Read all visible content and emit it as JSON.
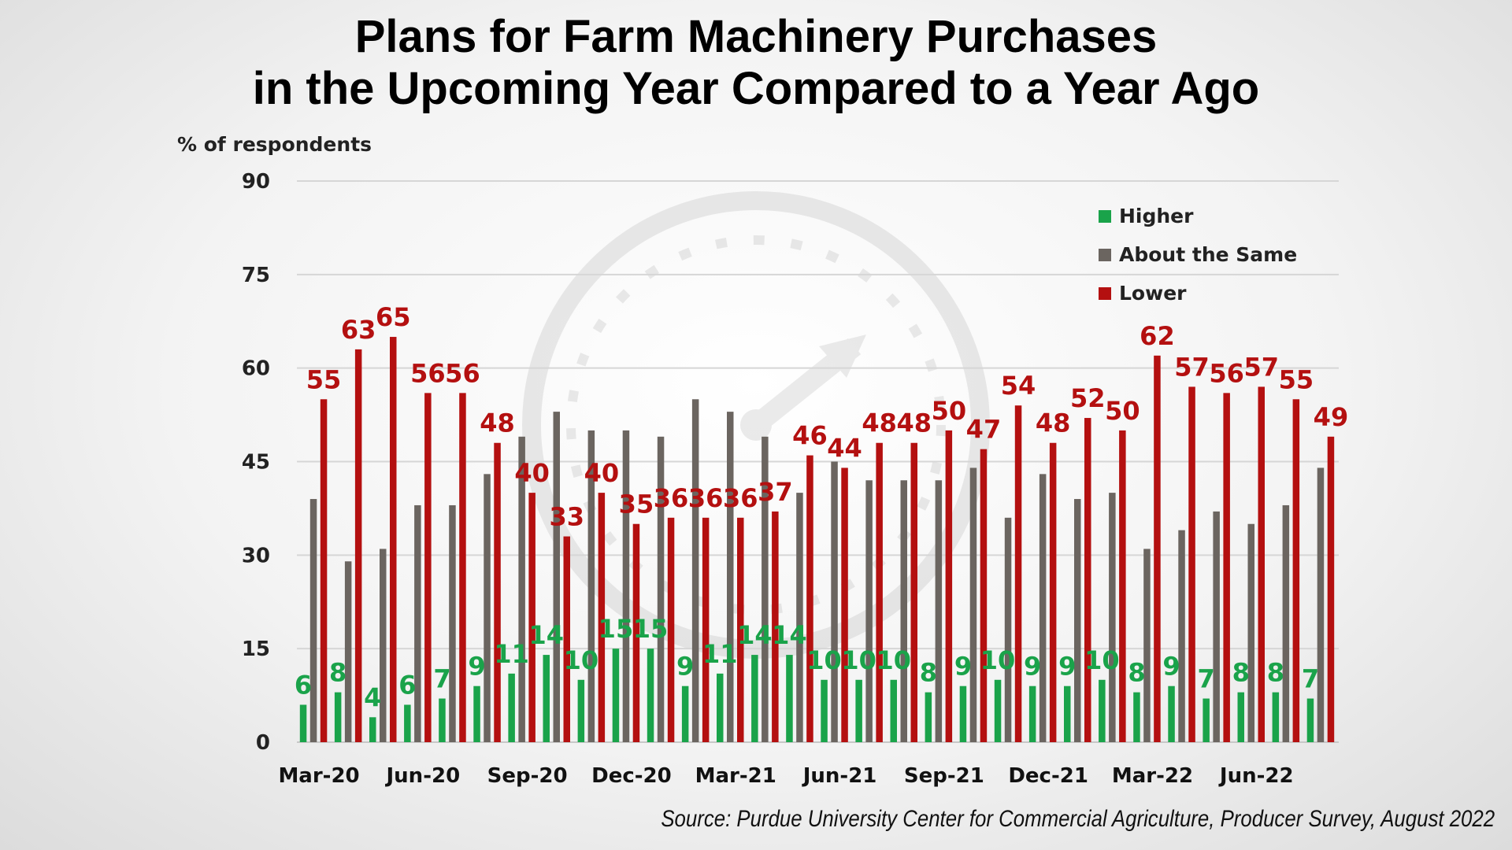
{
  "title_line1": "Plans for Farm Machinery Purchases",
  "title_line2": "in the Upcoming Year Compared to a Year Ago",
  "source": "Source: Purdue University Center for Commercial Agriculture, Producer Survey, August 2022",
  "colors": {
    "higher": "#1aa34a",
    "same": "#6b6560",
    "lower": "#b41010",
    "grid": "#d6d6d6"
  },
  "chart_data": {
    "type": "bar",
    "title": "Plans for Farm Machinery Purchases in the Upcoming Year Compared to a Year Ago",
    "ylabel": "% of respondents",
    "xlabel": "",
    "ylim": [
      0,
      90
    ],
    "yticks": [
      0,
      15,
      30,
      45,
      60,
      75,
      90
    ],
    "grid": true,
    "legend_position": "top-right",
    "x_tick_labels": [
      "Mar-20",
      "Jun-20",
      "Sep-20",
      "Dec-20",
      "Mar-21",
      "Jun-21",
      "Sep-21",
      "Dec-21",
      "Mar-22",
      "Jun-22"
    ],
    "categories": [
      "Mar-20",
      "Apr-20",
      "May-20",
      "Jun-20",
      "Jul-20",
      "Aug-20",
      "Sep-20",
      "Oct-20",
      "Nov-20",
      "Dec-20",
      "Jan-21",
      "Feb-21",
      "Mar-21",
      "Apr-21",
      "May-21",
      "Jun-21",
      "Jul-21",
      "Aug-21",
      "Sep-21",
      "Oct-21",
      "Nov-21",
      "Dec-21",
      "Jan-22",
      "Feb-22",
      "Mar-22",
      "Apr-22",
      "May-22",
      "Jun-22",
      "Jul-22",
      "Aug-22"
    ],
    "series": [
      {
        "name": "Higher",
        "values": [
          6,
          8,
          4,
          6,
          7,
          9,
          11,
          14,
          10,
          15,
          15,
          9,
          11,
          14,
          14,
          10,
          10,
          10,
          8,
          9,
          10,
          9,
          9,
          10,
          8,
          9,
          7,
          8,
          8,
          7
        ]
      },
      {
        "name": "About the Same",
        "values": [
          39,
          29,
          31,
          38,
          38,
          43,
          49,
          53,
          50,
          50,
          49,
          55,
          53,
          49,
          40,
          45,
          42,
          42,
          42,
          44,
          36,
          43,
          39,
          40,
          31,
          34,
          37,
          35,
          38,
          44
        ]
      },
      {
        "name": "Lower",
        "values": [
          55,
          63,
          65,
          56,
          56,
          48,
          40,
          33,
          40,
          35,
          36,
          36,
          36,
          37,
          46,
          44,
          48,
          48,
          50,
          47,
          54,
          48,
          52,
          50,
          62,
          57,
          56,
          57,
          55,
          49
        ]
      }
    ]
  }
}
